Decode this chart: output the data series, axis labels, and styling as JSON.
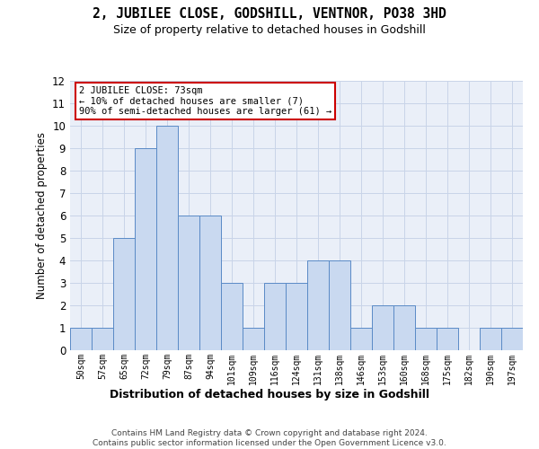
{
  "title1": "2, JUBILEE CLOSE, GODSHILL, VENTNOR, PO38 3HD",
  "title2": "Size of property relative to detached houses in Godshill",
  "xlabel": "Distribution of detached houses by size in Godshill",
  "ylabel": "Number of detached properties",
  "categories": [
    "50sqm",
    "57sqm",
    "65sqm",
    "72sqm",
    "79sqm",
    "87sqm",
    "94sqm",
    "101sqm",
    "109sqm",
    "116sqm",
    "124sqm",
    "131sqm",
    "138sqm",
    "146sqm",
    "153sqm",
    "160sqm",
    "168sqm",
    "175sqm",
    "182sqm",
    "190sqm",
    "197sqm"
  ],
  "values": [
    1,
    1,
    5,
    9,
    10,
    6,
    6,
    3,
    1,
    3,
    3,
    4,
    4,
    1,
    2,
    2,
    1,
    1,
    0,
    1,
    1
  ],
  "bar_color": "#c9d9f0",
  "bar_edge_color": "#5a8ac6",
  "ylim": [
    0,
    12
  ],
  "yticks": [
    0,
    1,
    2,
    3,
    4,
    5,
    6,
    7,
    8,
    9,
    10,
    11,
    12
  ],
  "annotation_text": "2 JUBILEE CLOSE: 73sqm\n← 10% of detached houses are smaller (7)\n90% of semi-detached houses are larger (61) →",
  "annotation_box_color": "#ffffff",
  "annotation_box_edge": "#cc0000",
  "footnote": "Contains HM Land Registry data © Crown copyright and database right 2024.\nContains public sector information licensed under the Open Government Licence v3.0.",
  "grid_color": "#c8d4e8",
  "background_color": "#eaeff8"
}
